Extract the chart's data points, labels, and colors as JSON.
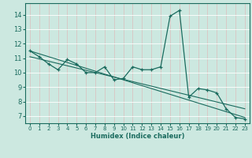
{
  "xlabel": "Humidex (Indice chaleur)",
  "bg_color": "#cce8e0",
  "grid_color_h": "#ffffff",
  "grid_color_v": "#e8c8c8",
  "line_color": "#1a6b5e",
  "xlim": [
    -0.5,
    23.5
  ],
  "ylim": [
    6.5,
    14.8
  ],
  "yticks": [
    7,
    8,
    9,
    10,
    11,
    12,
    13,
    14
  ],
  "xticks": [
    0,
    1,
    2,
    3,
    4,
    5,
    6,
    7,
    8,
    9,
    10,
    11,
    12,
    13,
    14,
    15,
    16,
    17,
    18,
    19,
    20,
    21,
    22,
    23
  ],
  "x_data": [
    0,
    1,
    2,
    3,
    4,
    5,
    6,
    7,
    8,
    9,
    10,
    11,
    12,
    13,
    14,
    15,
    16,
    17,
    18,
    19,
    20,
    21,
    22,
    23
  ],
  "y_main": [
    11.5,
    11.1,
    10.6,
    10.2,
    10.9,
    10.6,
    10.0,
    10.0,
    10.4,
    9.5,
    9.6,
    10.4,
    10.2,
    10.2,
    10.4,
    13.9,
    14.3,
    8.3,
    8.9,
    8.8,
    8.6,
    7.5,
    6.9,
    6.8
  ],
  "trend1_x": [
    0,
    23
  ],
  "trend1_y": [
    11.5,
    6.9
  ],
  "trend2_x": [
    0,
    23
  ],
  "trend2_y": [
    11.1,
    7.5
  ],
  "font_size_ticks": 5,
  "font_size_xlabel": 6
}
